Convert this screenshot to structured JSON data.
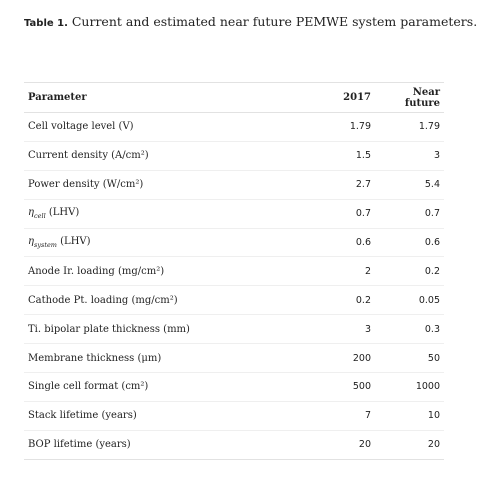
{
  "caption": {
    "label": "Table 1.",
    "text": " Current and estimated near future PEMWE system parameters."
  },
  "table": {
    "headers": [
      "Parameter",
      "2017",
      "Near future"
    ],
    "rows": [
      {
        "parameter": "Cell voltage level (V)",
        "current": "1.79",
        "future": "1.79"
      },
      {
        "parameter": "Current density (A/cm²)",
        "current": "1.5",
        "future": "3"
      },
      {
        "parameter": "Power density (W/cm²)",
        "current": "2.7",
        "future": "5.4"
      },
      {
        "eta_symbol": "η",
        "eta_sub": "cell",
        "parameter_suffix": " (LHV)",
        "current": "0.7",
        "future": "0.7"
      },
      {
        "eta_symbol": "η",
        "eta_sub": "system",
        "parameter_suffix": " (LHV)",
        "current": "0.6",
        "future": "0.6"
      },
      {
        "parameter": "Anode Ir. loading (mg/cm²)",
        "current": "2",
        "future": "0.2"
      },
      {
        "parameter": "Cathode Pt. loading (mg/cm²)",
        "current": "0.2",
        "future": "0.05"
      },
      {
        "parameter": "Ti. bipolar plate thickness (mm)",
        "current": "3",
        "future": "0.3"
      },
      {
        "parameter": "Membrane thickness (μm)",
        "current": "200",
        "future": "50"
      },
      {
        "parameter": "Single cell format (cm²)",
        "current": "500",
        "future": "1000"
      },
      {
        "parameter": "Stack lifetime (years)",
        "current": "7",
        "future": "10"
      },
      {
        "parameter": "BOP lifetime (years)",
        "current": "20",
        "future": "20"
      }
    ]
  }
}
